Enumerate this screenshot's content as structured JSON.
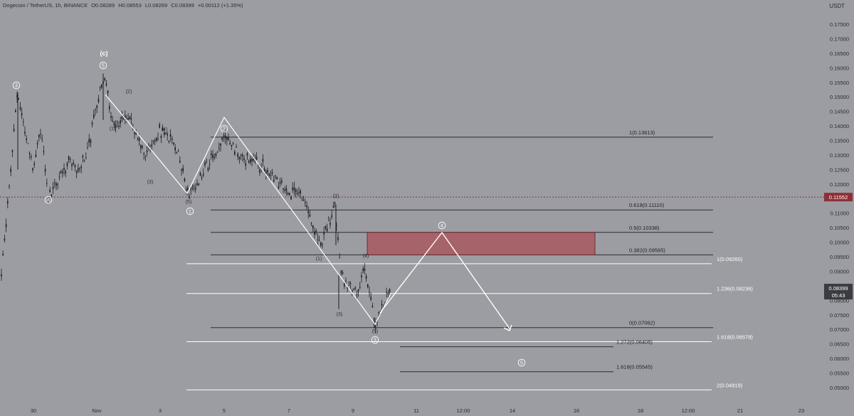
{
  "header": {
    "symbol": "Dogecoin / TetherUS, 1h, BINANCE",
    "open": "O0.08289",
    "high": "H0.08553",
    "low": "L0.08269",
    "close": "C0.08399",
    "change": "+0.00112 (+1.35%)"
  },
  "price_axis": {
    "unit": "USDT",
    "ticks": [
      "0.17500",
      "0.17000",
      "0.16500",
      "0.16000",
      "0.15500",
      "0.15000",
      "0.14500",
      "0.14000",
      "0.13500",
      "0.13000",
      "0.12500",
      "0.12000",
      "0.11500",
      "0.11000",
      "0.10500",
      "0.10000",
      "0.09500",
      "0.09000",
      "0.08500",
      "0.08000",
      "0.07500",
      "0.07000",
      "0.06500",
      "0.06000",
      "0.05500",
      "0.05000"
    ],
    "current_price": "0.08399",
    "countdown": "05:43",
    "marked_price": "0.11552"
  },
  "time_axis": {
    "labels": [
      "30",
      "Nov",
      "3",
      "5",
      "7",
      "9",
      "11",
      "12:00",
      "14",
      "16",
      "18",
      "12:00",
      "21",
      "23"
    ]
  },
  "colors": {
    "background": "#9c9da3",
    "candle": "#1c1d22",
    "projection": "#ffffff",
    "zone": "#a7636a",
    "marked_price_label": "#8f2f36"
  },
  "chart_data": {
    "type": "candlestick",
    "title": "Dogecoin / TetherUS, 1h, BINANCE",
    "ylabel": "USDT",
    "ylim": [
      0.048,
      0.1795
    ],
    "grid": false,
    "price_path": [
      {
        "x": "Oct 29",
        "y": 0.085
      },
      {
        "x": "Oct 29",
        "y": 0.101
      },
      {
        "x": "Oct 29",
        "y": 0.115
      },
      {
        "x": "Oct 29",
        "y": 0.1515
      },
      {
        "x": "Oct 30",
        "y": 0.125
      },
      {
        "x": "Oct 30",
        "y": 0.1385
      },
      {
        "x": "Oct 30",
        "y": 0.115
      },
      {
        "x": "Oct 31",
        "y": 0.128
      },
      {
        "x": "Oct 31",
        "y": 0.125
      },
      {
        "x": "Oct 31",
        "y": 0.13
      },
      {
        "x": "Nov 1",
        "y": 0.158
      },
      {
        "x": "Nov 1",
        "y": 0.139
      },
      {
        "x": "Nov 2",
        "y": 0.144
      },
      {
        "x": "Nov 2",
        "y": 0.13
      },
      {
        "x": "Nov 3",
        "y": 0.138
      },
      {
        "x": "Nov 3",
        "y": 0.135
      },
      {
        "x": "Nov 4",
        "y": 0.116
      },
      {
        "x": "Nov 4",
        "y": 0.124
      },
      {
        "x": "Nov 5",
        "y": 0.1361
      },
      {
        "x": "Nov 5",
        "y": 0.129
      },
      {
        "x": "Nov 6",
        "y": 0.126
      },
      {
        "x": "Nov 6",
        "y": 0.119
      },
      {
        "x": "Nov 7",
        "y": 0.116
      },
      {
        "x": "Nov 8",
        "y": 0.099
      },
      {
        "x": "Nov 8",
        "y": 0.113
      },
      {
        "x": "Nov 8",
        "y": 0.089
      },
      {
        "x": "Nov 9",
        "y": 0.082
      },
      {
        "x": "Nov 9",
        "y": 0.09
      },
      {
        "x": "Nov 9",
        "y": 0.0715
      },
      {
        "x": "Nov 10",
        "y": 0.084
      }
    ],
    "fib_levels": [
      {
        "label": "1(0.13613)",
        "value": 0.13613
      },
      {
        "label": "0.618(0.11110)",
        "value": 0.1111
      },
      {
        "label": "0.5(0.10338)",
        "value": 0.10338
      },
      {
        "label": "0.382(0.09565)",
        "value": 0.09565
      },
      {
        "label": "1(0.09260)",
        "value": 0.0926
      },
      {
        "label": "1.236(0.08236)",
        "value": 0.08236
      },
      {
        "label": "0(0.07062)",
        "value": 0.07062
      },
      {
        "label": "1.618(0.06578)",
        "value": 0.06578
      },
      {
        "label": "1.272(0.06405)",
        "value": 0.06405
      },
      {
        "label": "1.618(0.05545)",
        "value": 0.05545
      },
      {
        "label": "2(0.04919)",
        "value": 0.04919
      }
    ],
    "zone": {
      "top": 0.10338,
      "bottom": 0.09565
    },
    "projection_path": [
      {
        "x": "Nov 4",
        "y": 0.1361
      },
      {
        "x": "Nov 9",
        "y": 0.071
      },
      {
        "x": "Nov 11",
        "y": 0.103
      },
      {
        "x": "Nov 13",
        "y": 0.064
      }
    ],
    "wave_labels": [
      "(c)",
      "5",
      "3",
      "(2)",
      "(1)",
      "(4)",
      "(3)",
      "(5)",
      "4",
      "2",
      "(2)",
      "(4)",
      "(1)",
      "(3)",
      "(5)",
      "1",
      "3",
      "4",
      "5"
    ]
  }
}
